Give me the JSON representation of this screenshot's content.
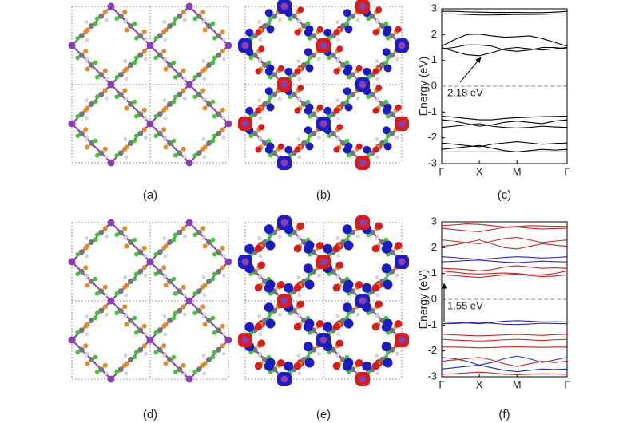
{
  "panel_labels": [
    "(a)",
    "(b)",
    "(d)",
    "(e)"
  ],
  "chart_data": [
    {
      "type": "line",
      "label": "(c)",
      "y_label": "Energy (eV)",
      "annotation": "2.18 eV",
      "x": [
        0,
        1,
        2,
        3,
        4,
        5,
        6,
        7,
        8,
        9,
        10
      ],
      "xlim": [
        0,
        10
      ],
      "xticks": [
        {
          "value": 0,
          "label": "Γ"
        },
        {
          "value": 3,
          "label": "X"
        },
        {
          "value": 6,
          "label": "M"
        },
        {
          "value": 10,
          "label": "Γ"
        }
      ],
      "ylim": [
        -3,
        3
      ],
      "yticks": [
        -3,
        -2,
        -1,
        0,
        1,
        2,
        3
      ],
      "hline": 0,
      "series": [
        {
          "color": "#000000",
          "values": [
            2.9,
            2.9,
            2.88,
            2.87,
            2.86,
            2.86,
            2.86,
            2.85,
            2.85,
            2.87,
            2.9
          ]
        },
        {
          "color": "#000000",
          "values": [
            2.8,
            2.8,
            2.78,
            2.76,
            2.76,
            2.77,
            2.78,
            2.78,
            2.79,
            2.8,
            2.8
          ]
        },
        {
          "color": "#000000",
          "values": [
            1.55,
            1.8,
            2.0,
            2.02,
            1.95,
            1.9,
            1.92,
            1.95,
            1.85,
            1.7,
            1.55
          ]
        },
        {
          "color": "#000000",
          "values": [
            1.5,
            1.35,
            1.22,
            1.18,
            1.3,
            1.45,
            1.5,
            1.45,
            1.4,
            1.45,
            1.5
          ]
        },
        {
          "color": "#000000",
          "values": [
            1.45,
            1.5,
            1.6,
            1.6,
            1.55,
            1.4,
            1.35,
            1.4,
            1.5,
            1.5,
            1.45
          ]
        },
        {
          "color": "#000000",
          "values": [
            -1.16,
            -1.2,
            -1.25,
            -1.3,
            -1.3,
            -1.25,
            -1.22,
            -1.2,
            -1.18,
            -1.17,
            -1.16
          ]
        },
        {
          "color": "#000000",
          "values": [
            -1.3,
            -1.35,
            -1.45,
            -1.55,
            -1.5,
            -1.4,
            -1.35,
            -1.4,
            -1.45,
            -1.35,
            -1.3
          ]
        },
        {
          "color": "#000000",
          "values": [
            -1.6,
            -1.55,
            -1.5,
            -1.45,
            -1.55,
            -1.6,
            -1.62,
            -1.6,
            -1.55,
            -1.58,
            -1.6
          ]
        },
        {
          "color": "#000000",
          "values": [
            -2.2,
            -2.25,
            -2.3,
            -2.35,
            -2.25,
            -2.2,
            -2.15,
            -2.2,
            -2.25,
            -2.22,
            -2.2
          ]
        },
        {
          "color": "#000000",
          "values": [
            -2.45,
            -2.4,
            -2.35,
            -2.3,
            -2.4,
            -2.5,
            -2.55,
            -2.5,
            -2.45,
            -2.48,
            -2.45
          ]
        },
        {
          "color": "#000000",
          "values": [
            -2.55,
            -2.55,
            -2.55,
            -2.55,
            -2.55,
            -2.55,
            -2.55,
            -2.55,
            -2.55,
            -2.55,
            -2.55
          ]
        }
      ]
    },
    {
      "type": "line",
      "label": "(f)",
      "y_label": "Energy (eV)",
      "annotation": "1.55 eV",
      "x": [
        0,
        1,
        2,
        3,
        4,
        5,
        6,
        7,
        8,
        9,
        10
      ],
      "xlim": [
        0,
        10
      ],
      "xticks": [
        {
          "value": 0,
          "label": "Γ"
        },
        {
          "value": 3,
          "label": "X"
        },
        {
          "value": 6,
          "label": "M"
        },
        {
          "value": 10,
          "label": "Γ"
        }
      ],
      "ylim": [
        -3,
        3
      ],
      "yticks": [
        -3,
        -2,
        -1,
        0,
        1,
        2,
        3
      ],
      "hline": 0,
      "series": [
        {
          "color": "#c0282d",
          "values": [
            2.85,
            2.88,
            2.92,
            2.9,
            2.85,
            2.8,
            2.82,
            2.85,
            2.84,
            2.83,
            2.82
          ]
        },
        {
          "color": "#c0282d",
          "values": [
            2.75,
            2.7,
            2.65,
            2.62,
            2.7,
            2.78,
            2.8,
            2.75,
            2.72,
            2.74,
            2.75
          ]
        },
        {
          "color": "#c0282d",
          "values": [
            2.3,
            2.25,
            2.2,
            2.15,
            2.25,
            2.35,
            2.4,
            2.3,
            2.2,
            2.25,
            2.3
          ]
        },
        {
          "color": "#c0282d",
          "values": [
            2.05,
            2.1,
            2.2,
            2.3,
            2.15,
            2.0,
            1.95,
            2.05,
            2.15,
            2.1,
            2.05
          ]
        },
        {
          "color": "#2b2ba8",
          "values": [
            1.65,
            1.62,
            1.58,
            1.55,
            1.58,
            1.62,
            1.65,
            1.63,
            1.6,
            1.62,
            1.65
          ]
        },
        {
          "color": "#2b2ba8",
          "values": [
            1.45,
            1.47,
            1.5,
            1.52,
            1.48,
            1.44,
            1.42,
            1.45,
            1.48,
            1.46,
            1.45
          ]
        },
        {
          "color": "#c0282d",
          "values": [
            1.2,
            1.18,
            1.15,
            1.1,
            1.15,
            1.25,
            1.3,
            1.25,
            1.2,
            1.22,
            1.2
          ]
        },
        {
          "color": "#c0282d",
          "values": [
            1.1,
            1.05,
            1.0,
            0.98,
            1.0,
            1.02,
            1.0,
            0.95,
            0.95,
            1.0,
            1.1
          ]
        },
        {
          "color": "#c0282d",
          "values": [
            0.95,
            0.92,
            0.88,
            0.85,
            0.9,
            0.95,
            0.98,
            0.92,
            0.88,
            0.9,
            0.95
          ]
        },
        {
          "color": "#2b2ba8",
          "values": [
            -0.88,
            -0.9,
            -0.92,
            -0.95,
            -0.9,
            -0.85,
            -0.83,
            -0.85,
            -0.88,
            -0.87,
            -0.88
          ]
        },
        {
          "color": "#2b2ba8",
          "values": [
            -0.95,
            -0.94,
            -0.92,
            -0.9,
            -0.93,
            -0.97,
            -0.98,
            -0.96,
            -0.93,
            -0.94,
            -0.95
          ]
        },
        {
          "color": "#c0282d",
          "values": [
            -1.35,
            -1.38,
            -1.4,
            -1.42,
            -1.4,
            -1.38,
            -1.36,
            -1.38,
            -1.4,
            -1.37,
            -1.35
          ]
        },
        {
          "color": "#c0282d",
          "values": [
            -1.55,
            -1.58,
            -1.6,
            -1.62,
            -1.6,
            -1.57,
            -1.55,
            -1.57,
            -1.6,
            -1.57,
            -1.55
          ]
        },
        {
          "color": "#c0282d",
          "values": [
            -1.85,
            -1.85,
            -1.86,
            -1.88,
            -1.87,
            -1.85,
            -1.84,
            -1.85,
            -1.86,
            -1.85,
            -1.85
          ]
        },
        {
          "color": "#2b2ba8",
          "values": [
            -2.25,
            -2.3,
            -2.4,
            -2.55,
            -2.45,
            -2.3,
            -2.2,
            -2.3,
            -2.45,
            -2.35,
            -2.25
          ]
        },
        {
          "color": "#c0282d",
          "values": [
            -2.4,
            -2.35,
            -2.3,
            -2.25,
            -2.35,
            -2.5,
            -2.6,
            -2.5,
            -2.4,
            -2.45,
            -2.4
          ]
        },
        {
          "color": "#2b2ba8",
          "values": [
            -2.7,
            -2.65,
            -2.6,
            -2.55,
            -2.65,
            -2.75,
            -2.8,
            -2.75,
            -2.7,
            -2.72,
            -2.7
          ]
        },
        {
          "color": "#c0282d",
          "values": [
            -2.9,
            -2.88,
            -2.85,
            -2.82,
            -2.85,
            -2.9,
            -2.92,
            -2.9,
            -2.88,
            -2.89,
            -2.9
          ]
        }
      ]
    }
  ]
}
